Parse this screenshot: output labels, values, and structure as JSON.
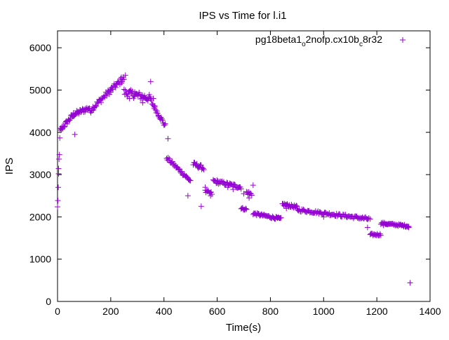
{
  "chart_data": {
    "type": "scatter",
    "title": "IPS vs Time for l.i1",
    "xlabel": "Time(s)",
    "ylabel": "IPS",
    "xlim": [
      0,
      1400
    ],
    "ylim": [
      0,
      6400
    ],
    "xticks": [
      0,
      200,
      400,
      600,
      800,
      1000,
      1200,
      1400
    ],
    "yticks": [
      0,
      1000,
      2000,
      3000,
      4000,
      5000,
      6000
    ],
    "grid": false,
    "legend_position": "top-right",
    "marker": "+",
    "series": [
      {
        "name_parts": {
          "base": "pg18beta1",
          "sub1": "o",
          "mid": "2nofp.cx10b",
          "sub2": "c",
          "tail": "8r32"
        },
        "color": "#9400d3",
        "segments": [
          {
            "x_start": 0,
            "x_end": 4,
            "y_start": 2200,
            "y_end": 2900,
            "n": 4,
            "jitter": 120
          },
          {
            "x_start": 4,
            "x_end": 10,
            "y_start": 3100,
            "y_end": 4000,
            "n": 5,
            "jitter": 120
          },
          {
            "x_start": 10,
            "x_end": 60,
            "y_start": 4050,
            "y_end": 4420,
            "n": 22,
            "jitter": 60
          },
          {
            "x_start": 60,
            "x_end": 120,
            "y_start": 4420,
            "y_end": 4580,
            "n": 26,
            "jitter": 60
          },
          {
            "x_start": 120,
            "x_end": 200,
            "y_start": 4500,
            "y_end": 5000,
            "n": 32,
            "jitter": 70
          },
          {
            "x_start": 200,
            "x_end": 250,
            "y_start": 5000,
            "y_end": 5280,
            "n": 20,
            "jitter": 70
          },
          {
            "x_start": 250,
            "x_end": 350,
            "y_start": 4950,
            "y_end": 4800,
            "n": 40,
            "jitter": 90
          },
          {
            "x_start": 350,
            "x_end": 405,
            "y_start": 4750,
            "y_end": 4150,
            "n": 22,
            "jitter": 60
          },
          {
            "x_start": 410,
            "x_end": 500,
            "y_start": 3400,
            "y_end": 2850,
            "n": 34,
            "jitter": 45
          },
          {
            "x_start": 510,
            "x_end": 550,
            "y_start": 3250,
            "y_end": 3150,
            "n": 16,
            "jitter": 50
          },
          {
            "x_start": 555,
            "x_end": 580,
            "y_start": 2600,
            "y_end": 2550,
            "n": 10,
            "jitter": 40
          },
          {
            "x_start": 585,
            "x_end": 690,
            "y_start": 2850,
            "y_end": 2700,
            "n": 38,
            "jitter": 45
          },
          {
            "x_start": 690,
            "x_end": 710,
            "y_start": 2200,
            "y_end": 2180,
            "n": 8,
            "jitter": 25
          },
          {
            "x_start": 710,
            "x_end": 730,
            "y_start": 2580,
            "y_end": 2530,
            "n": 8,
            "jitter": 50
          },
          {
            "x_start": 735,
            "x_end": 840,
            "y_start": 2080,
            "y_end": 1950,
            "n": 40,
            "jitter": 30
          },
          {
            "x_start": 845,
            "x_end": 900,
            "y_start": 2300,
            "y_end": 2230,
            "n": 22,
            "jitter": 35
          },
          {
            "x_start": 900,
            "x_end": 1170,
            "y_start": 2170,
            "y_end": 1950,
            "n": 90,
            "jitter": 35
          },
          {
            "x_start": 1175,
            "x_end": 1215,
            "y_start": 1580,
            "y_end": 1580,
            "n": 16,
            "jitter": 25
          },
          {
            "x_start": 1215,
            "x_end": 1320,
            "y_start": 1850,
            "y_end": 1780,
            "n": 40,
            "jitter": 25
          }
        ],
        "points": [
          [
            65,
            3950
          ],
          [
            200,
            4950
          ],
          [
            240,
            5300
          ],
          [
            255,
            5350
          ],
          [
            270,
            4800
          ],
          [
            290,
            4950
          ],
          [
            320,
            4700
          ],
          [
            350,
            5200
          ],
          [
            360,
            4800
          ],
          [
            365,
            4600
          ],
          [
            380,
            4400
          ],
          [
            415,
            3850
          ],
          [
            490,
            2500
          ],
          [
            540,
            2250
          ],
          [
            555,
            2700
          ],
          [
            575,
            2500
          ],
          [
            600,
            2800
          ],
          [
            640,
            2700
          ],
          [
            660,
            2650
          ],
          [
            700,
            2550
          ],
          [
            720,
            2450
          ],
          [
            735,
            2750
          ],
          [
            860,
            2200
          ],
          [
            1000,
            2000
          ],
          [
            1165,
            1750
          ],
          [
            1175,
            1950
          ],
          [
            1225,
            1800
          ],
          [
            1320,
            1750
          ],
          [
            1325,
            440
          ]
        ]
      }
    ]
  }
}
